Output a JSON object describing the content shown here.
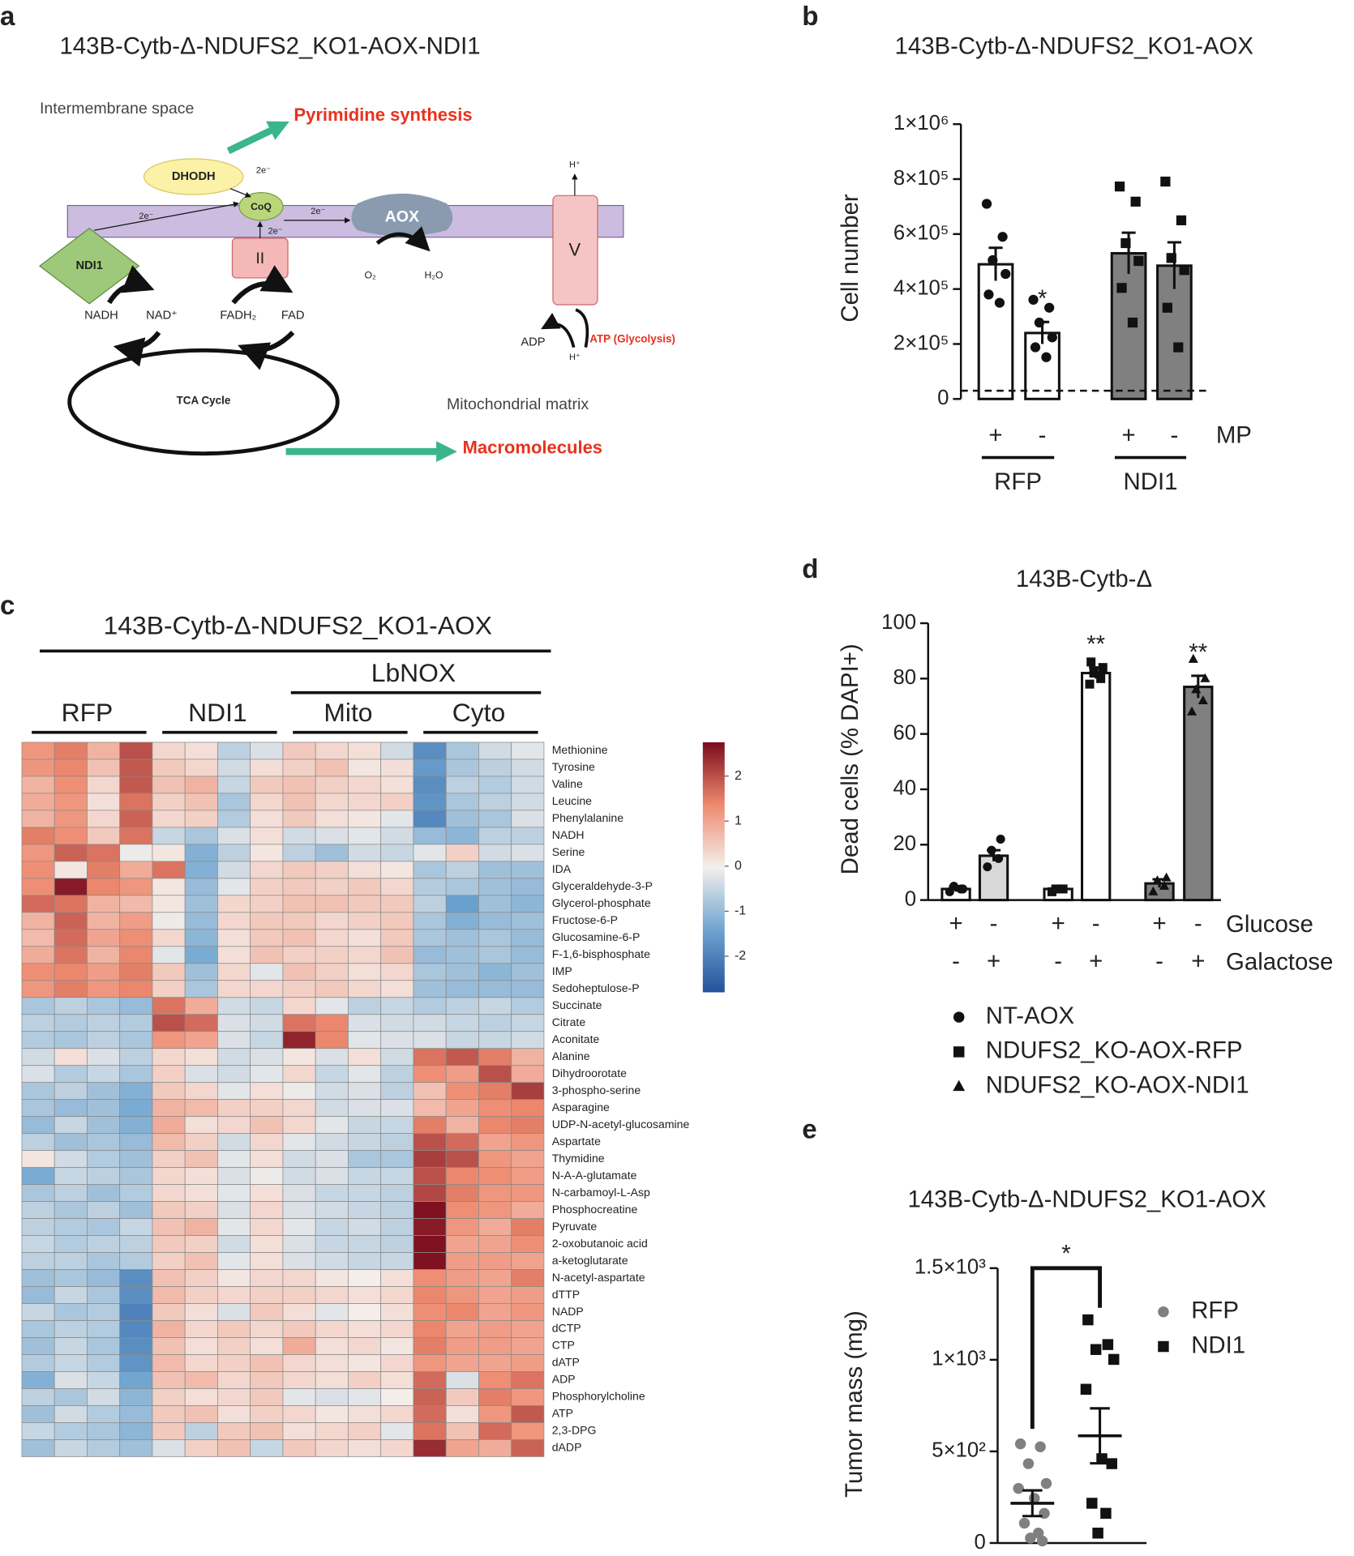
{
  "figure": {
    "a": {
      "label": "a",
      "title": "143B-Cytb-Δ-NDUFS2_KO1-AOX-NDI1",
      "texts": {
        "intermembrane": "Intermembrane space",
        "pyrimidine": "Pyrimidine synthesis",
        "dhodh": "DHODH",
        "coq": "CoQ",
        "aox": "AOX",
        "v": "V",
        "h_top": "H⁺",
        "h_bottom": "H⁺",
        "ndi1": "NDI1",
        "complex2": "II",
        "nadh": "NADH",
        "nad": "NAD⁺",
        "fadh2": "FADH₂",
        "fad": "FAD",
        "o2": "O₂",
        "h2o": "H₂O",
        "adp": "ADP",
        "atp": "ATP (Glycolysis)",
        "tca": "TCA Cycle",
        "matrix": "Mitochondrial matrix",
        "macro": "Macromolecules"
      },
      "electrons": [
        "2e⁻",
        "2e⁻",
        "2e⁻",
        "2e⁻"
      ]
    }
  },
  "chart_data": [
    {
      "label": "b",
      "type": "bar",
      "title": "143B-Cytb-Δ-NDUFS2_KO1-AOX",
      "ylabel": "Cell number",
      "ylim": [
        0,
        1000000
      ],
      "yticks": [
        0,
        {
          "value": 200000,
          "label": "2×10⁵"
        },
        {
          "value": 400000,
          "label": "4×10⁵"
        },
        {
          "value": 600000,
          "label": "6×10⁵"
        },
        {
          "value": 800000,
          "label": "8×10⁵"
        },
        {
          "value": 1000000,
          "label": "1×10⁶"
        }
      ],
      "values": [
        490000,
        240000,
        530000,
        485000
      ],
      "errors": [
        60000,
        40000,
        75000,
        85000
      ],
      "colors": [
        "#ffffff",
        "#ffffff",
        "#808080",
        "#808080"
      ],
      "markers": [
        "circle",
        "circle",
        "square",
        "square"
      ],
      "points": [
        [
          710000,
          590000,
          505000,
          455000,
          380000,
          350000
        ],
        [
          361000,
          332000,
          278000,
          224000,
          188000,
          152000
        ],
        [
          773000,
          718000,
          567000,
          502000,
          404000,
          278000
        ],
        [
          791000,
          650000,
          513000,
          469000,
          332000,
          188000
        ]
      ],
      "value_labels": [
        null,
        "*",
        null,
        null
      ],
      "reference_line": 30000,
      "signs": [
        "+",
        "-",
        "+",
        "-"
      ],
      "sign_label": "MP",
      "groups": [
        "RFP",
        "NDI1"
      ]
    },
    {
      "label": "c",
      "type": "heatmap",
      "title": "143B-Cytb-Δ-NDUFS2_KO1-AOX",
      "supergroup": "LbNOX",
      "groups": [
        "RFP",
        "NDI1",
        "Mito",
        "Cyto"
      ],
      "rows": [
        "Methionine",
        "Tyrosine",
        "Valine",
        "Leucine",
        "Phenylalanine",
        "NADH",
        "Serine",
        "IDA",
        "Glyceraldehyde-3-P",
        "Glycerol-phosphate",
        "Fructose-6-P",
        "Glucosamine-6-P",
        "F-1,6-bisphosphate",
        "IMP",
        "Sedoheptulose-P",
        "Succinate",
        "Citrate",
        "Aconitate",
        "Alanine",
        "Dihydroorotate",
        "3-phospho-serine",
        "Asparagine",
        "UDP-N-acetyl-glucosamine",
        "Aspartate",
        "Thymidine",
        "N-A-A-glutamate",
        "N-carbamoyl-L-Asp",
        "Phosphocreatine",
        "Pyruvate",
        "2-oxobutanoic acid",
        "a-ketoglutarate",
        "N-acetyl-aspartate",
        "dTTP",
        "NADP",
        "dCTP",
        "CTP",
        "dATP",
        "ADP",
        "Phosphorylcholine",
        "ATP",
        "2,3-DPG",
        "dADP"
      ],
      "z": [
        [
          1.2,
          1.5,
          0.8,
          2,
          0.3,
          0.2,
          -0.6,
          -0.3,
          0.5,
          0.3,
          0.2,
          -0.4,
          -1.8,
          -0.8,
          -0.4,
          -0.2
        ],
        [
          1.2,
          1.4,
          0.6,
          1.9,
          0.5,
          0.3,
          -0.4,
          0.2,
          0.4,
          0.6,
          0.1,
          0.2,
          -1.6,
          -0.8,
          -0.6,
          -0.4
        ],
        [
          0.8,
          1.3,
          0.3,
          1.9,
          0.6,
          0.8,
          -0.5,
          0.5,
          0.6,
          0.4,
          0.3,
          0.2,
          -1.8,
          -0.6,
          -0.7,
          -0.4
        ],
        [
          0.9,
          1.2,
          0.2,
          1.6,
          0.4,
          0.6,
          -0.8,
          0.3,
          0.6,
          0.3,
          0.3,
          0.4,
          -1.7,
          -0.8,
          -0.6,
          -0.4
        ],
        [
          0.8,
          1.2,
          0.3,
          1.8,
          0.3,
          0.4,
          -0.7,
          0.2,
          0.5,
          0.2,
          0.1,
          -0.2,
          -1.9,
          -0.9,
          -0.8,
          -0.3
        ],
        [
          1.5,
          1.3,
          0.5,
          1.6,
          -0.5,
          -0.8,
          -0.3,
          0.2,
          -0.4,
          -0.3,
          -0.2,
          -0.4,
          -1,
          -1.1,
          -0.6,
          -0.6
        ],
        [
          1.2,
          1.8,
          1.6,
          -0.1,
          0.1,
          -1.2,
          -0.6,
          0.1,
          -0.6,
          -0.9,
          -0.4,
          -0.5,
          -0.2,
          0.4,
          -0.4,
          -0.3
        ],
        [
          1.3,
          0.1,
          1.5,
          0.9,
          1.6,
          -1.2,
          -0.4,
          0.3,
          0.5,
          0.4,
          0.2,
          0.1,
          -0.8,
          -0.6,
          -0.9,
          -0.9
        ],
        [
          1.3,
          2.6,
          1.4,
          1.2,
          0.1,
          -1,
          -0.2,
          0.4,
          0.5,
          0.4,
          0.5,
          0.3,
          -0.7,
          -0.8,
          -0.9,
          -1
        ],
        [
          1.7,
          1.6,
          0.8,
          0.7,
          0.1,
          -0.9,
          0.3,
          0.4,
          0.6,
          0.6,
          0.5,
          0.5,
          -0.6,
          -1.5,
          -0.9,
          -1.1
        ],
        [
          0.8,
          1.8,
          0.8,
          1.1,
          -0.1,
          -1,
          0.3,
          0.5,
          0.5,
          0.3,
          0.4,
          0.5,
          -0.8,
          -1.2,
          -1,
          -0.9
        ],
        [
          0.7,
          1.7,
          1,
          1.3,
          0.3,
          -1.1,
          0.2,
          0.5,
          0.6,
          0.3,
          0.2,
          0.5,
          -0.8,
          -0.9,
          -0.8,
          -1
        ],
        [
          0.9,
          1.6,
          0.8,
          1.4,
          -0.2,
          -1.3,
          0.2,
          0.6,
          0.4,
          0.4,
          0.3,
          0.6,
          -1,
          -0.9,
          -0.8,
          -1
        ],
        [
          1.3,
          1.4,
          1.1,
          1.5,
          0.5,
          -0.9,
          0.3,
          -0.2,
          0.6,
          0.4,
          0.2,
          0.3,
          -0.8,
          -0.9,
          -1.1,
          -0.9
        ],
        [
          1.2,
          1.5,
          1.2,
          1.4,
          0.4,
          -0.8,
          0.3,
          0.3,
          0.4,
          0.5,
          0.3,
          0.2,
          -0.9,
          -1,
          -1,
          -1
        ],
        [
          -0.8,
          -0.6,
          -0.8,
          -1,
          1.6,
          0.9,
          -0.4,
          -0.5,
          0.3,
          -0.2,
          -0.6,
          -0.5,
          -0.7,
          -0.6,
          -0.5,
          -0.7
        ],
        [
          -0.6,
          -0.7,
          -0.6,
          -0.7,
          2,
          1.7,
          -0.3,
          -0.4,
          1.6,
          1.4,
          -0.3,
          -0.4,
          -0.4,
          -0.5,
          -0.6,
          -0.5
        ],
        [
          -0.7,
          -0.8,
          -0.6,
          -0.8,
          1.2,
          1,
          -0.3,
          -0.5,
          2.5,
          1.4,
          -0.2,
          -0.3,
          -0.3,
          -0.5,
          -0.5,
          -0.4
        ],
        [
          -0.4,
          0.2,
          -0.3,
          -0.6,
          0.3,
          0.2,
          -0.4,
          -0.3,
          0.1,
          -0.3,
          0.2,
          -0.4,
          1.6,
          1.9,
          1.5,
          0.8
        ],
        [
          -0.3,
          -0.7,
          -0.5,
          -0.8,
          0.4,
          -0.3,
          -0.4,
          -0.2,
          0.3,
          -0.5,
          -0.2,
          -0.6,
          1.3,
          1.1,
          2,
          0.9
        ],
        [
          -0.8,
          -0.6,
          -0.9,
          -1.2,
          0.5,
          0.3,
          -0.2,
          0.2,
          -0.1,
          -0.4,
          -0.3,
          -0.6,
          0.6,
          1.3,
          1.5,
          2.2
        ],
        [
          -0.8,
          -1,
          -0.9,
          -1.3,
          0.8,
          0.7,
          0.4,
          0.4,
          0.3,
          -0.4,
          -0.3,
          -0.3,
          0.7,
          1,
          1.3,
          1.4
        ],
        [
          -1,
          -0.5,
          -0.9,
          -1.2,
          0.9,
          0.2,
          0.3,
          0.6,
          0.3,
          -0.2,
          -0.5,
          -0.5,
          1.5,
          0.8,
          1.4,
          1.5
        ],
        [
          -0.6,
          -0.9,
          -0.8,
          -1,
          0.7,
          0.4,
          -0.4,
          0.3,
          -0.2,
          -0.4,
          -0.5,
          -0.6,
          2,
          1.7,
          1,
          1.2
        ],
        [
          0.1,
          -0.4,
          -0.7,
          -0.9,
          0.4,
          0.6,
          -0.2,
          0.2,
          -0.4,
          -0.3,
          -0.8,
          -0.8,
          2.2,
          2,
          1.2,
          1
        ],
        [
          -1.3,
          -0.5,
          -0.6,
          -0.8,
          0.3,
          0.2,
          -0.3,
          -0.1,
          -0.4,
          -0.3,
          -0.5,
          -0.5,
          2,
          1.4,
          1.3,
          1.1
        ],
        [
          -0.8,
          -0.6,
          -0.9,
          -0.7,
          0.3,
          0.2,
          -0.2,
          0.2,
          -0.3,
          -0.5,
          -0.5,
          -0.6,
          2.1,
          1.5,
          1.2,
          1.2
        ],
        [
          -0.6,
          -0.8,
          -0.6,
          -0.9,
          0.5,
          0.4,
          -0.3,
          0.3,
          -0.3,
          -0.4,
          -0.5,
          -0.6,
          2.7,
          1.3,
          1.2,
          0.9
        ],
        [
          -0.6,
          -0.7,
          -0.8,
          -0.5,
          0.6,
          0.8,
          -0.2,
          0.3,
          -0.2,
          -0.5,
          -0.4,
          -0.6,
          2.6,
          1.2,
          0.9,
          1.5
        ],
        [
          -0.5,
          -0.7,
          -0.6,
          -0.6,
          0.5,
          0.4,
          -0.4,
          0.2,
          -0.3,
          -0.5,
          -0.5,
          -0.6,
          2.7,
          1,
          1,
          1.3
        ],
        [
          -0.6,
          -0.6,
          -0.8,
          -0.7,
          0.4,
          0.6,
          -0.2,
          0.2,
          -0.3,
          -0.4,
          -0.5,
          -0.5,
          2.7,
          1.1,
          1.1,
          1
        ],
        [
          -0.9,
          -0.8,
          -1,
          -1.8,
          0.6,
          0.4,
          0.1,
          0.3,
          0.3,
          0.1,
          0,
          0.2,
          1.3,
          1.1,
          1,
          1.5
        ],
        [
          -1,
          -0.5,
          -0.8,
          -1.8,
          0.7,
          0.4,
          0.3,
          0.4,
          0.4,
          0.3,
          0.2,
          0.3,
          1.4,
          1.2,
          1,
          1.1
        ],
        [
          -0.5,
          -0.8,
          -0.7,
          -2,
          0.5,
          0.2,
          -0.3,
          0.5,
          0.2,
          -0.2,
          0,
          0.2,
          1.3,
          1.4,
          1,
          1.2
        ],
        [
          -0.8,
          -0.6,
          -0.7,
          -1.9,
          0.8,
          0.3,
          0.5,
          0.3,
          0.5,
          0.3,
          0.2,
          0.3,
          1.4,
          1,
          1.1,
          1
        ],
        [
          -0.9,
          -0.5,
          -0.8,
          -1.8,
          0.6,
          0.2,
          0.4,
          0.2,
          0.9,
          0.2,
          0.3,
          0.1,
          1.5,
          1.1,
          1.1,
          1
        ],
        [
          -0.7,
          -0.5,
          -0.7,
          -1.7,
          0.7,
          0.3,
          0.4,
          0.6,
          0.3,
          0.2,
          0.1,
          0.3,
          1.2,
          1,
          1,
          1.1
        ],
        [
          -1.2,
          -0.3,
          -0.5,
          -1.4,
          0.6,
          0.7,
          0.3,
          0.5,
          0.3,
          0.2,
          0.4,
          0.2,
          1.7,
          -0.3,
          1.3,
          1.6
        ],
        [
          -0.6,
          -0.8,
          -0.4,
          -1.1,
          0.4,
          0.2,
          0.3,
          0.5,
          -0.2,
          -0.3,
          -0.2,
          0,
          1.8,
          0.5,
          1.5,
          1.2
        ],
        [
          -0.9,
          -0.4,
          -0.7,
          -1,
          0.5,
          0.6,
          0.2,
          0.4,
          0.3,
          0.1,
          0.2,
          0.3,
          1.7,
          0.2,
          1.2,
          1.9
        ],
        [
          -0.5,
          -0.7,
          -0.8,
          -1.1,
          0.5,
          -0.6,
          0.5,
          0.6,
          0.2,
          0.3,
          0.4,
          -0.2,
          1.6,
          0.6,
          1.7,
          1.2
        ],
        [
          -0.9,
          -0.5,
          -0.7,
          -0.9,
          -0.3,
          0.4,
          0.6,
          -0.5,
          0.5,
          0.3,
          0.2,
          0.3,
          2.4,
          1,
          0.9,
          1.8
        ]
      ],
      "zlim": [
        -2.8,
        2.75
      ],
      "zticks": [
        2,
        1,
        0,
        -1,
        -2
      ],
      "colorscale": [
        "#23529c",
        "#6fa5d0",
        "#f4efec",
        "#ee8a6f",
        "#7b0c1d"
      ]
    },
    {
      "label": "d",
      "type": "bar",
      "title": "143B-Cytb-Δ",
      "ylabel": "Dead  cells (% DAPI+)",
      "ylim": [
        0,
        100
      ],
      "yticks": [
        0,
        20,
        40,
        60,
        80,
        100
      ],
      "series": [
        {
          "name": "NT-AOX",
          "marker": "circle",
          "colors": [
            "#ffffff",
            "#d9d9d9"
          ],
          "values": [
            4,
            16
          ],
          "errors": [
            1,
            2
          ],
          "points": [
            [
              3,
              4,
              5,
              4
            ],
            [
              12,
              15,
              18,
              22
            ]
          ],
          "value_labels": [
            null,
            null
          ]
        },
        {
          "name": "NDUFS2_KO-AOX-RFP",
          "marker": "square",
          "colors": [
            "#ffffff",
            "#ffffff"
          ],
          "values": [
            4,
            82
          ],
          "errors": [
            1,
            2
          ],
          "points": [
            [
              3,
              4,
              4
            ],
            [
              78,
              80,
              82,
              84,
              86
            ]
          ],
          "value_labels": [
            null,
            "**"
          ]
        },
        {
          "name": "NDUFS2_KO-AOX-NDI1",
          "marker": "triangle",
          "colors": [
            "#808080",
            "#808080"
          ],
          "values": [
            6,
            77
          ],
          "errors": [
            1.5,
            4
          ],
          "points": [
            [
              3,
              5,
              7,
              8
            ],
            [
              68,
              72,
              76,
              80,
              87
            ]
          ],
          "value_labels": [
            null,
            "**"
          ]
        }
      ],
      "conditions": [
        {
          "name": "Glucose",
          "signs": [
            "+",
            "-",
            "+",
            "-",
            "+",
            "-"
          ]
        },
        {
          "name": "Galactose",
          "signs": [
            "-",
            "+",
            "-",
            "+",
            "-",
            "+"
          ]
        }
      ]
    },
    {
      "label": "e",
      "type": "scatter",
      "title": "143B-Cytb-Δ-NDUFS2_KO1-AOX",
      "ylabel": "Tumor mass (mg)",
      "ylim": [
        0,
        1500
      ],
      "yticks": [
        0,
        {
          "value": 500,
          "label": "5×10²"
        },
        {
          "value": 1000,
          "label": "1×10³"
        },
        {
          "value": 1500,
          "label": "1.5×10³"
        }
      ],
      "series": [
        {
          "name": "RFP",
          "marker": "circle",
          "color": "#808080",
          "values": [
            541,
            525,
            433,
            325,
            298,
            244,
            162,
            108,
            54,
            27,
            11
          ],
          "mean": 217,
          "sem": 70
        },
        {
          "name": "NDI1",
          "marker": "square",
          "color": "#111111",
          "values": [
            1218,
            1083,
            1056,
            1002,
            839,
            460,
            433,
            217,
            162,
            54
          ],
          "mean": 585,
          "sem": 150
        }
      ],
      "annotation": "*"
    }
  ]
}
